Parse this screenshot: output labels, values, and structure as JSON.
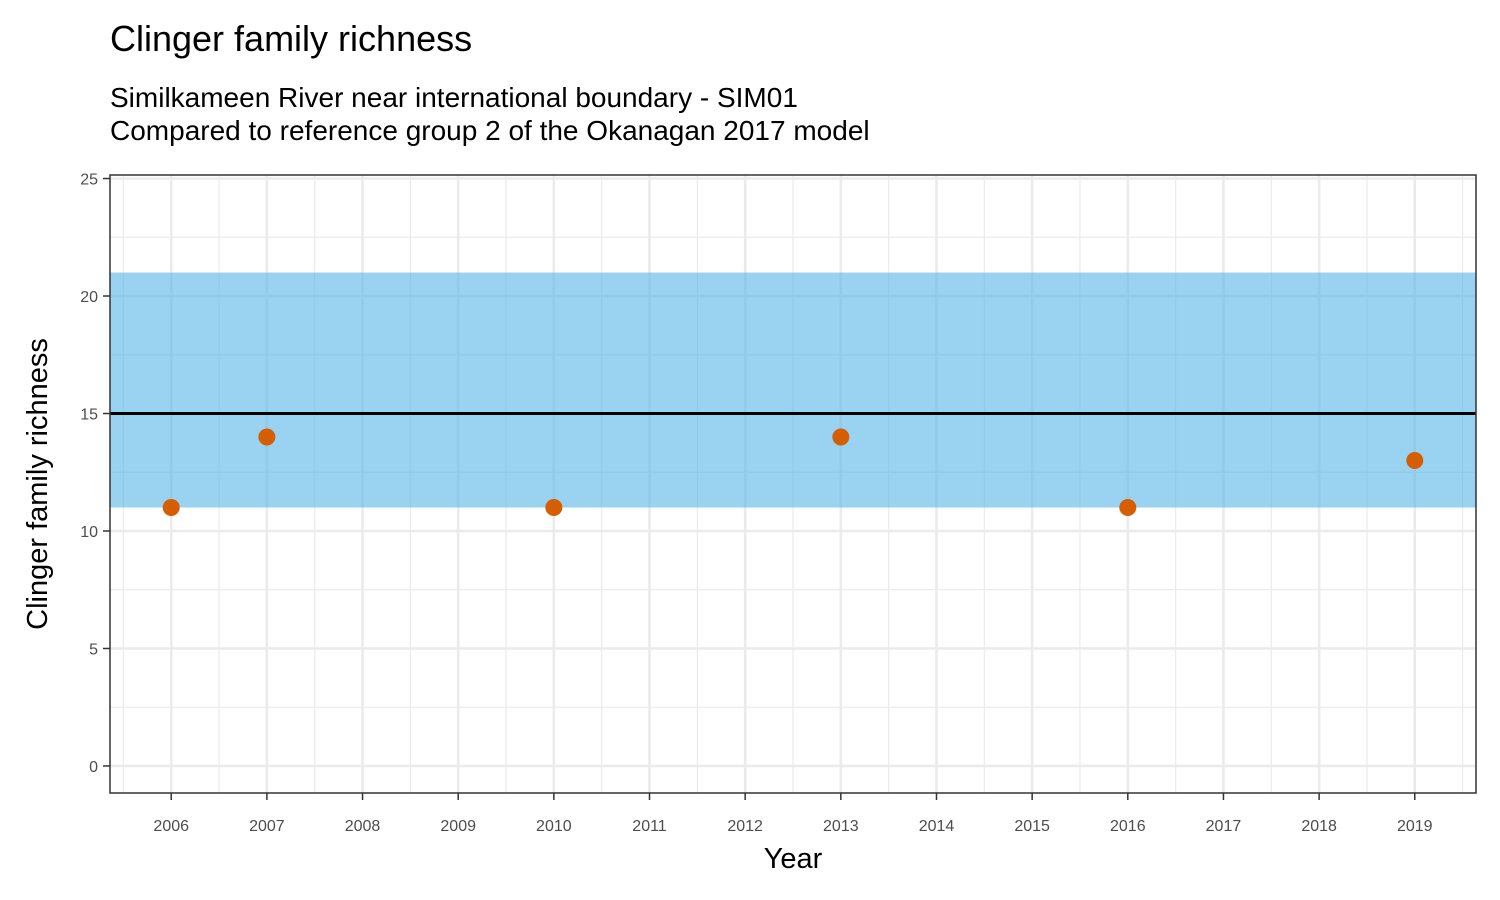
{
  "chart_data": {
    "type": "scatter",
    "title": "Clinger family richness",
    "subtitle": [
      "Similkameen River near international boundary - SIM01",
      "Compared to reference group 2 of the Okanagan 2017 model"
    ],
    "xlabel": "Year",
    "ylabel": "Clinger family richness",
    "x_ticks": [
      2006,
      2007,
      2008,
      2009,
      2010,
      2011,
      2012,
      2013,
      2014,
      2015,
      2016,
      2017,
      2018,
      2019
    ],
    "y_ticks": [
      0,
      5,
      10,
      15,
      20,
      25
    ],
    "xlim": [
      2005.36,
      2019.64
    ],
    "ylim": [
      -1.15,
      25.15
    ],
    "grid": true,
    "reference_band": {
      "ymin": 11,
      "ymax": 21,
      "color": "#56B4E9"
    },
    "reference_line": {
      "y": 15,
      "color": "#000000"
    },
    "points": {
      "x": [
        2006,
        2007,
        2010,
        2013,
        2016,
        2019
      ],
      "y": [
        11,
        14,
        11,
        14,
        11,
        13
      ],
      "color": "#D55E00"
    }
  }
}
